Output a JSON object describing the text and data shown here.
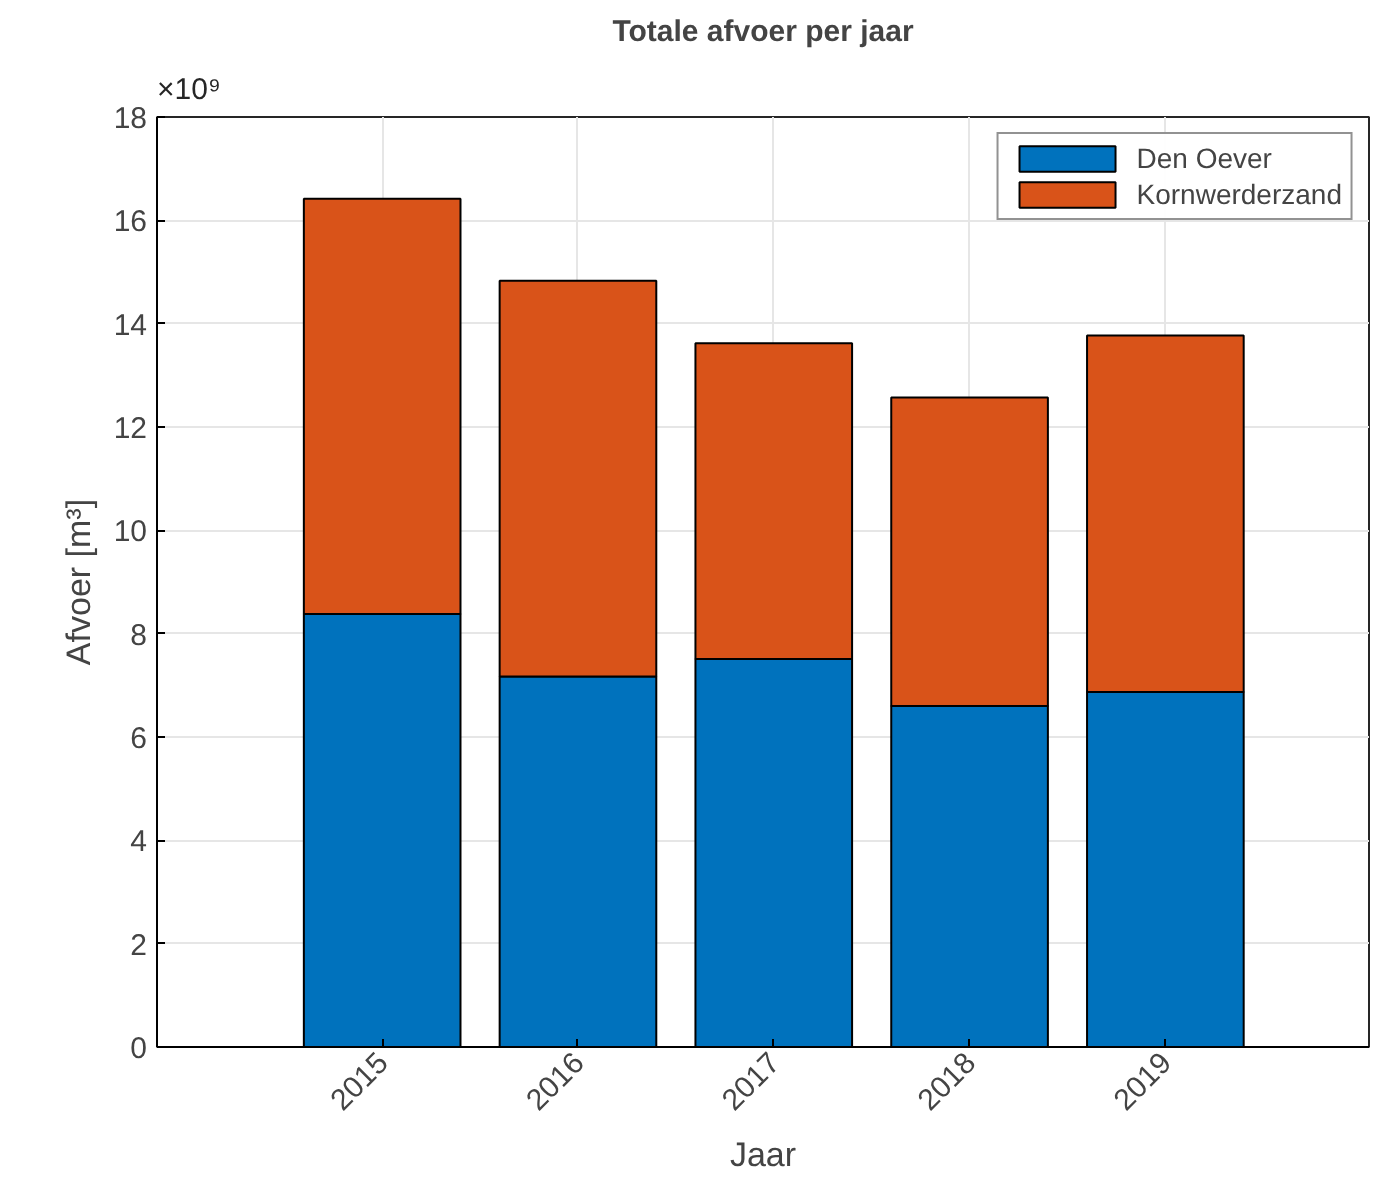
{
  "chart_data": {
    "type": "bar",
    "title": "Totale afvoer per jaar",
    "xlabel": "Jaar",
    "ylabel": "Afvoer [m³]",
    "categories": [
      "2015",
      "2016",
      "2017",
      "2018",
      "2019"
    ],
    "stacked": true,
    "series": [
      {
        "name": "Den Oever",
        "color": "#0072bd",
        "values": [
          8.38,
          7.17,
          7.51,
          6.6,
          6.87
        ]
      },
      {
        "name": "Kornwerderzand",
        "color": "#d95319",
        "values": [
          8.04,
          7.66,
          6.11,
          5.97,
          6.9
        ]
      }
    ],
    "ylim": [
      0,
      18
    ],
    "yticks": [
      0,
      2,
      4,
      6,
      8,
      10,
      12,
      14,
      16,
      18
    ],
    "annotations": [
      "×10⁹"
    ],
    "grid": true,
    "legend": "top right"
  }
}
